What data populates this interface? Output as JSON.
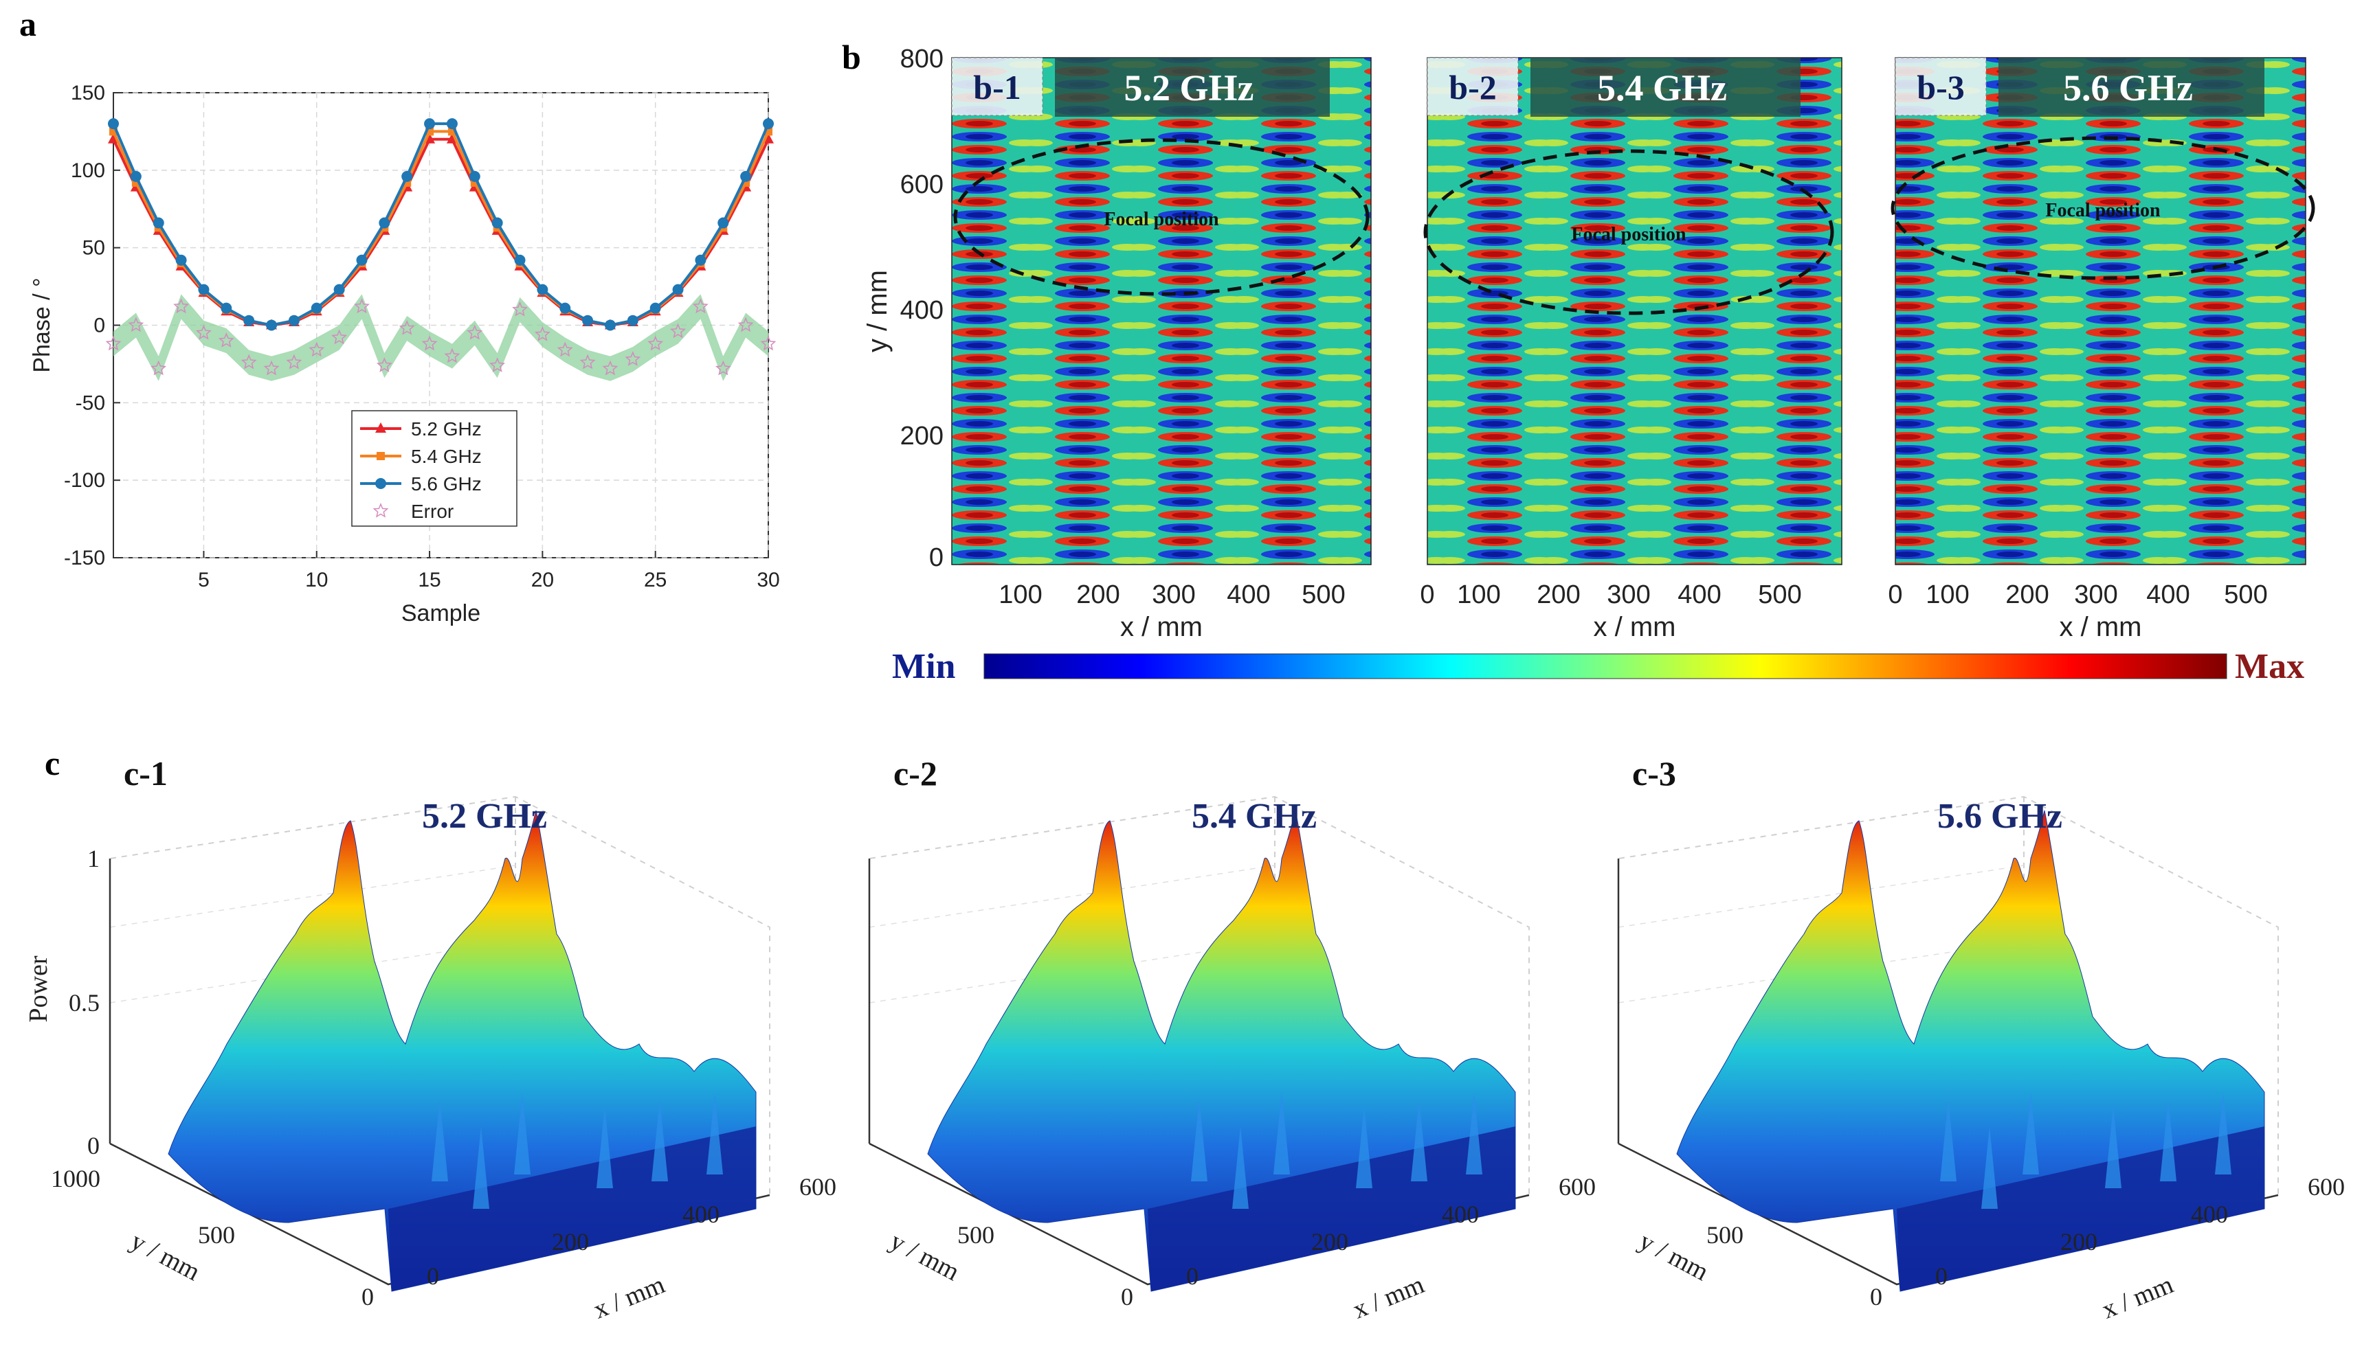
{
  "panel_labels": {
    "a": "a",
    "b": "b",
    "c": "c"
  },
  "chart_data": [
    {
      "id": "a",
      "type": "line",
      "title": "",
      "xlabel": "Sample",
      "ylabel": "Phase / °",
      "xlim": [
        1,
        30
      ],
      "ylim": [
        -150,
        150
      ],
      "xticks": [
        "5",
        "10",
        "15",
        "20",
        "25",
        "30"
      ],
      "yticks": [
        "150",
        "100",
        "50",
        "0",
        "-50",
        "-100",
        "-150"
      ],
      "grid": true,
      "legend_position": "lower-center",
      "x": [
        1,
        2,
        3,
        4,
        5,
        6,
        7,
        8,
        9,
        10,
        11,
        12,
        13,
        14,
        15,
        16,
        17,
        18,
        19,
        20,
        21,
        22,
        23,
        24,
        25,
        26,
        27,
        28,
        29,
        30
      ],
      "series": [
        {
          "name": "5.2 GHz",
          "color": "#e8252b",
          "marker": "triangle",
          "values": [
            120,
            89,
            61,
            38,
            21,
            9,
            2,
            0,
            2,
            9,
            21,
            38,
            61,
            89,
            120,
            120,
            89,
            61,
            38,
            21,
            9,
            2,
            0,
            2,
            9,
            21,
            38,
            61,
            89,
            120
          ]
        },
        {
          "name": "5.4 GHz",
          "color": "#f58220",
          "marker": "square",
          "values": [
            125,
            92,
            63,
            40,
            22,
            10,
            3,
            0,
            3,
            10,
            22,
            40,
            63,
            92,
            125,
            125,
            92,
            63,
            40,
            22,
            10,
            3,
            0,
            3,
            10,
            22,
            40,
            63,
            92,
            125
          ]
        },
        {
          "name": "5.6 GHz",
          "color": "#1f77b4",
          "marker": "circle",
          "values": [
            130,
            96,
            66,
            42,
            23,
            11,
            3,
            0,
            3,
            11,
            23,
            42,
            66,
            96,
            130,
            130,
            96,
            66,
            42,
            23,
            11,
            3,
            0,
            3,
            11,
            23,
            42,
            66,
            96,
            130
          ]
        },
        {
          "name": "Error",
          "color": "#e7a0c6",
          "marker": "star",
          "values": [
            -12,
            0,
            -28,
            12,
            -5,
            -10,
            -24,
            -28,
            -24,
            -16,
            -8,
            12,
            -26,
            -2,
            -12,
            -20,
            -5,
            -26,
            10,
            -6,
            -16,
            -24,
            -28,
            -22,
            -12,
            -4,
            12,
            -28,
            0,
            -12
          ]
        }
      ]
    },
    {
      "id": "b-1",
      "type": "heatmap",
      "tag": "b-1",
      "title": "5.2 GHz",
      "xlabel": "x / mm",
      "ylabel": "y / mm",
      "xticks": [
        "100",
        "200",
        "300",
        "400",
        "500"
      ],
      "yticks": [
        "800",
        "600",
        "400",
        "200",
        "0"
      ],
      "annotation": "Focal position"
    },
    {
      "id": "b-2",
      "type": "heatmap",
      "tag": "b-2",
      "title": "5.4 GHz",
      "xlabel": "x / mm",
      "xticks": [
        "0",
        "100",
        "200",
        "300",
        "400",
        "500"
      ],
      "annotation": "Focal position"
    },
    {
      "id": "b-3",
      "type": "heatmap",
      "tag": "b-3",
      "title": "5.6 GHz",
      "xlabel": "x / mm",
      "xticks": [
        "0",
        "100",
        "200",
        "300",
        "400",
        "500"
      ],
      "annotation": "Focal position"
    },
    {
      "id": "c-1",
      "type": "surface",
      "tag": "c-1",
      "title": "5.2 GHz",
      "zlabel": "Power",
      "zticks": [
        "1",
        "0.5",
        "0"
      ],
      "ylabel": "y / mm",
      "yticks": [
        "1000",
        "500",
        "0"
      ],
      "xlabel": "x / mm",
      "xticks": [
        "0",
        "200",
        "400",
        "600"
      ]
    },
    {
      "id": "c-2",
      "type": "surface",
      "tag": "c-2",
      "title": "5.4 GHz",
      "ylabel": "y / mm",
      "yticks": [
        "500",
        "0"
      ],
      "xlabel": "x / mm",
      "xticks": [
        "0",
        "200",
        "400",
        "600"
      ]
    },
    {
      "id": "c-3",
      "type": "surface",
      "tag": "c-3",
      "title": "5.6 GHz",
      "ylabel": "y / mm",
      "yticks": [
        "500",
        "0"
      ],
      "xlabel": "x / mm",
      "xticks": [
        "0",
        "200",
        "400",
        "600"
      ]
    }
  ],
  "colorbar": {
    "min_label": "Min",
    "max_label": "Max"
  }
}
